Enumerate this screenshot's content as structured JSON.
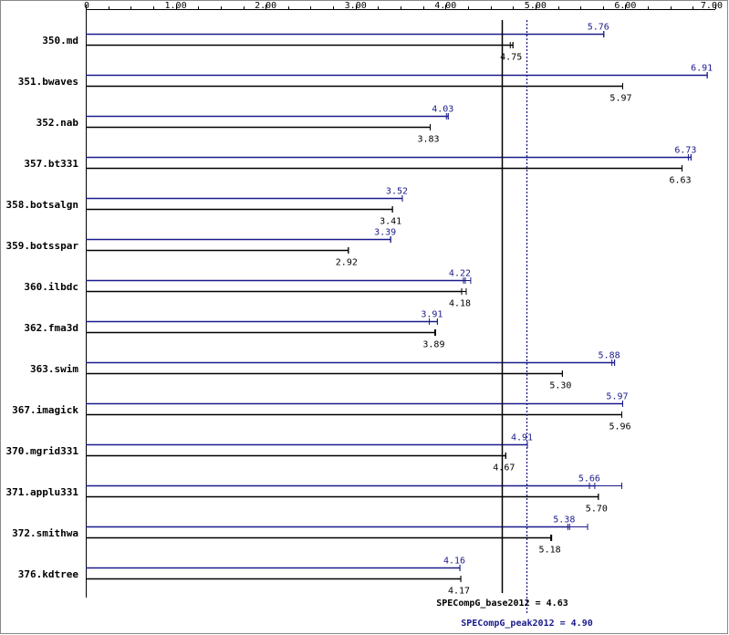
{
  "chart_data": {
    "type": "bar",
    "orientation": "horizontal",
    "categories": [
      "350.md",
      "351.bwaves",
      "352.nab",
      "357.bt331",
      "358.botsalgn",
      "359.botsspar",
      "360.ilbdc",
      "362.fma3d",
      "363.swim",
      "367.imagick",
      "370.mgrid331",
      "371.applu331",
      "372.smithwa",
      "376.kdtree"
    ],
    "series": [
      {
        "name": "",
        "role": "peak",
        "color": "#1a1a8c",
        "values": [
          5.76,
          6.91,
          4.03,
          6.73,
          3.52,
          3.39,
          4.22,
          3.91,
          5.88,
          5.97,
          4.91,
          5.66,
          5.38,
          4.16
        ],
        "labels": [
          "5.76",
          "6.91",
          "4.03",
          "6.73",
          "3.52",
          "3.39",
          "4.22",
          "3.91",
          "5.88",
          "5.97",
          "4.91",
          "5.66",
          "5.38",
          "4.16"
        ],
        "range_min": [
          5.76,
          6.91,
          4.01,
          6.7,
          3.52,
          3.39,
          4.2,
          3.82,
          5.85,
          5.97,
          4.91,
          5.6,
          5.36,
          4.16
        ],
        "range_max": [
          5.76,
          6.91,
          4.03,
          6.73,
          3.52,
          3.39,
          4.28,
          3.91,
          5.88,
          5.97,
          4.91,
          5.96,
          5.58,
          4.16
        ]
      },
      {
        "name": "",
        "role": "base",
        "color": "#000000",
        "values": [
          4.75,
          5.97,
          3.83,
          6.63,
          3.41,
          2.92,
          4.18,
          3.89,
          5.3,
          5.96,
          4.67,
          5.7,
          5.18,
          4.17
        ],
        "labels": [
          "4.75",
          "5.97",
          "3.83",
          "6.63",
          "3.41",
          "2.92",
          "4.18",
          "3.89",
          "5.30",
          "5.96",
          "4.67",
          "5.70",
          "5.18",
          "4.17"
        ],
        "range_min": [
          4.72,
          5.97,
          3.83,
          6.63,
          3.41,
          2.92,
          4.18,
          3.88,
          5.3,
          5.96,
          4.67,
          5.7,
          5.17,
          4.17
        ],
        "range_max": [
          4.75,
          5.97,
          3.83,
          6.63,
          3.41,
          2.92,
          4.23,
          3.89,
          5.3,
          5.96,
          4.67,
          5.7,
          5.18,
          4.17
        ]
      }
    ],
    "xlim": [
      0,
      7.0
    ],
    "x_ticks": [
      0,
      1,
      2,
      3,
      4,
      5,
      6,
      7
    ],
    "x_tick_labels": [
      "0",
      "1.00",
      "2.00",
      "3.00",
      "4.00",
      "5.00",
      "6.00",
      "7.00"
    ],
    "axis_position": "top",
    "grid": false,
    "reference_lines": [
      {
        "label": "SPECompG_base2012 = 4.63",
        "value": 4.63,
        "style": "solid",
        "color": "#000000"
      },
      {
        "label": "SPECompG_peak2012 = 4.90",
        "value": 4.9,
        "style": "dotted",
        "color": "#1a1a8c"
      }
    ],
    "title": "",
    "xlabel": "",
    "ylabel": ""
  }
}
